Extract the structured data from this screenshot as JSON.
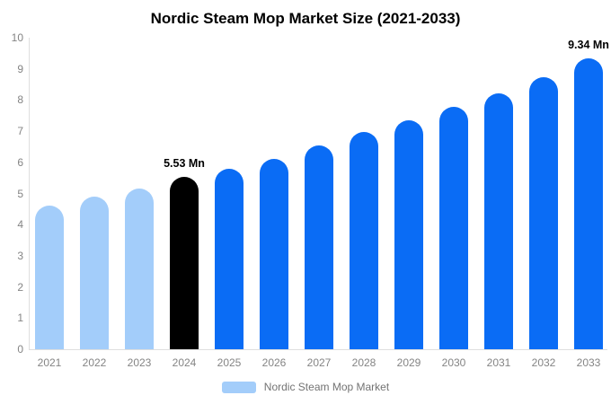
{
  "title": "Nordic Steam Mop Market Size (2021-2033)",
  "chart_data": {
    "type": "bar",
    "title": "Nordic Steam Mop Market Size (2021-2033)",
    "categories": [
      "2021",
      "2022",
      "2023",
      "2024",
      "2025",
      "2026",
      "2027",
      "2028",
      "2029",
      "2030",
      "2031",
      "2032",
      "2033"
    ],
    "values": [
      4.6,
      4.9,
      5.17,
      5.53,
      5.8,
      6.12,
      6.55,
      6.97,
      7.34,
      7.78,
      8.2,
      8.73,
      9.34
    ],
    "unit": "Mn",
    "bar_colors": [
      "#A3CDFA",
      "#A3CDFA",
      "#A3CDFA",
      "#000000",
      "#0A6CF5",
      "#0A6CF5",
      "#0A6CF5",
      "#0A6CF5",
      "#0A6CF5",
      "#0A6CF5",
      "#0A6CF5",
      "#0A6CF5",
      "#0A6CF5"
    ],
    "annotations": [
      {
        "index": 3,
        "text": "5.53 Mn"
      },
      {
        "index": 12,
        "text": "9.34 Mn"
      }
    ],
    "xlabel": "",
    "ylabel": "",
    "ylim": [
      0,
      10
    ],
    "yticks": [
      0,
      1,
      2,
      3,
      4,
      5,
      6,
      7,
      8,
      9,
      10
    ],
    "grid": false,
    "legend_position": "bottom",
    "legend": [
      {
        "label": "Nordic Steam Mop Market",
        "color": "#A3CDFA"
      }
    ]
  },
  "colors": {
    "highlight_bar": "#000000",
    "forecast_bar": "#0A6CF5",
    "historic_bar": "#A3CDFA",
    "axis_line": "#dedede",
    "tick_text": "#848484",
    "legend_text": "#737373"
  }
}
